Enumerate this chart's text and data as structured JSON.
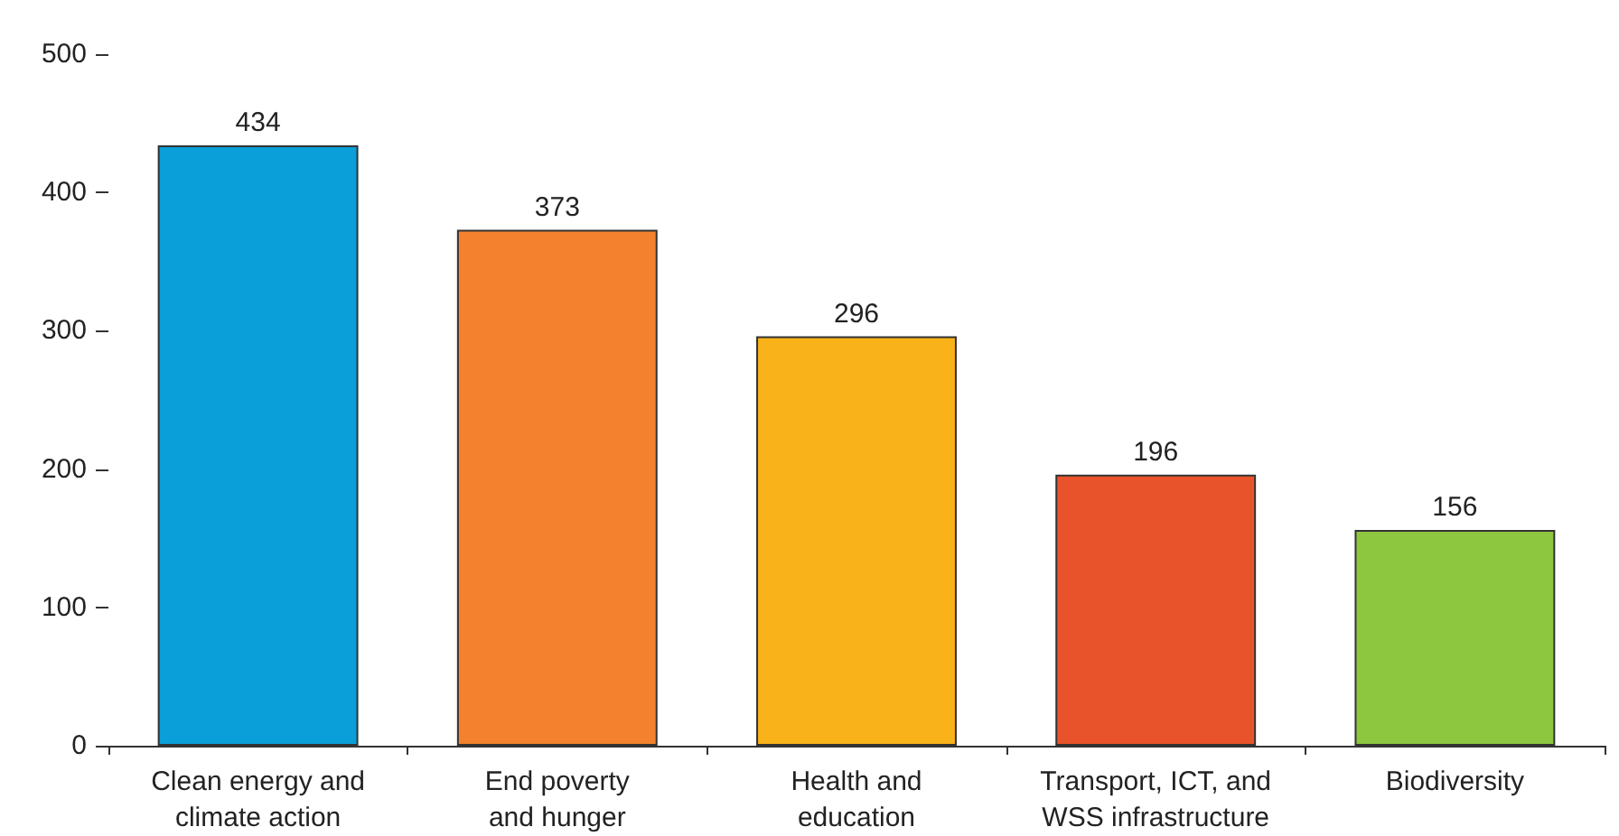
{
  "chart_data": {
    "type": "bar",
    "categories": [
      "Clean energy and\nclimate action",
      "End poverty\nand hunger",
      "Health and\neducation",
      "Transport, ICT, and\nWSS infrastructure",
      "Biodiversity"
    ],
    "values": [
      434,
      373,
      296,
      196,
      156
    ],
    "colors": [
      "#0a9fd8",
      "#f3812d",
      "#f9b21a",
      "#e9532b",
      "#8dc63f"
    ],
    "ylim": [
      0,
      500
    ],
    "yticks": [
      0,
      100,
      200,
      300,
      400,
      500
    ],
    "grid": false,
    "data_labels": true
  }
}
